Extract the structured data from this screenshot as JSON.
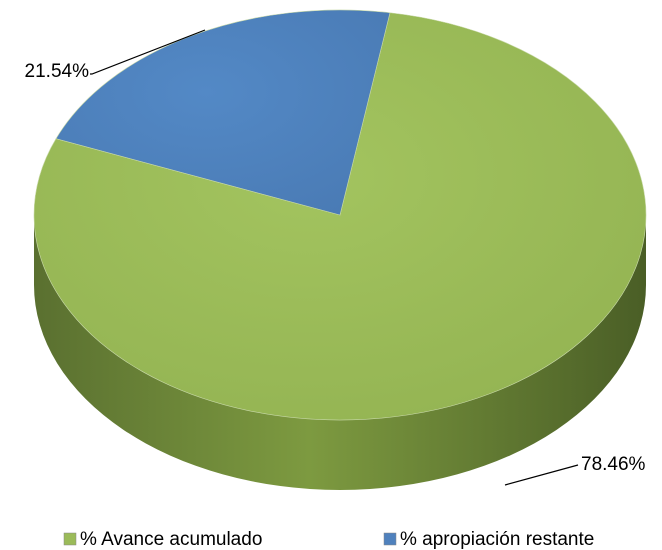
{
  "chart_data": {
    "type": "pie",
    "categories": [
      "% Avance acumulado",
      "% apropiación restante"
    ],
    "values": [
      78.46,
      21.54
    ],
    "value_labels": [
      "78.46%",
      "21.54%"
    ],
    "colors": [
      "#9bbb59",
      "#4f81bd"
    ],
    "legend": "bottom"
  }
}
